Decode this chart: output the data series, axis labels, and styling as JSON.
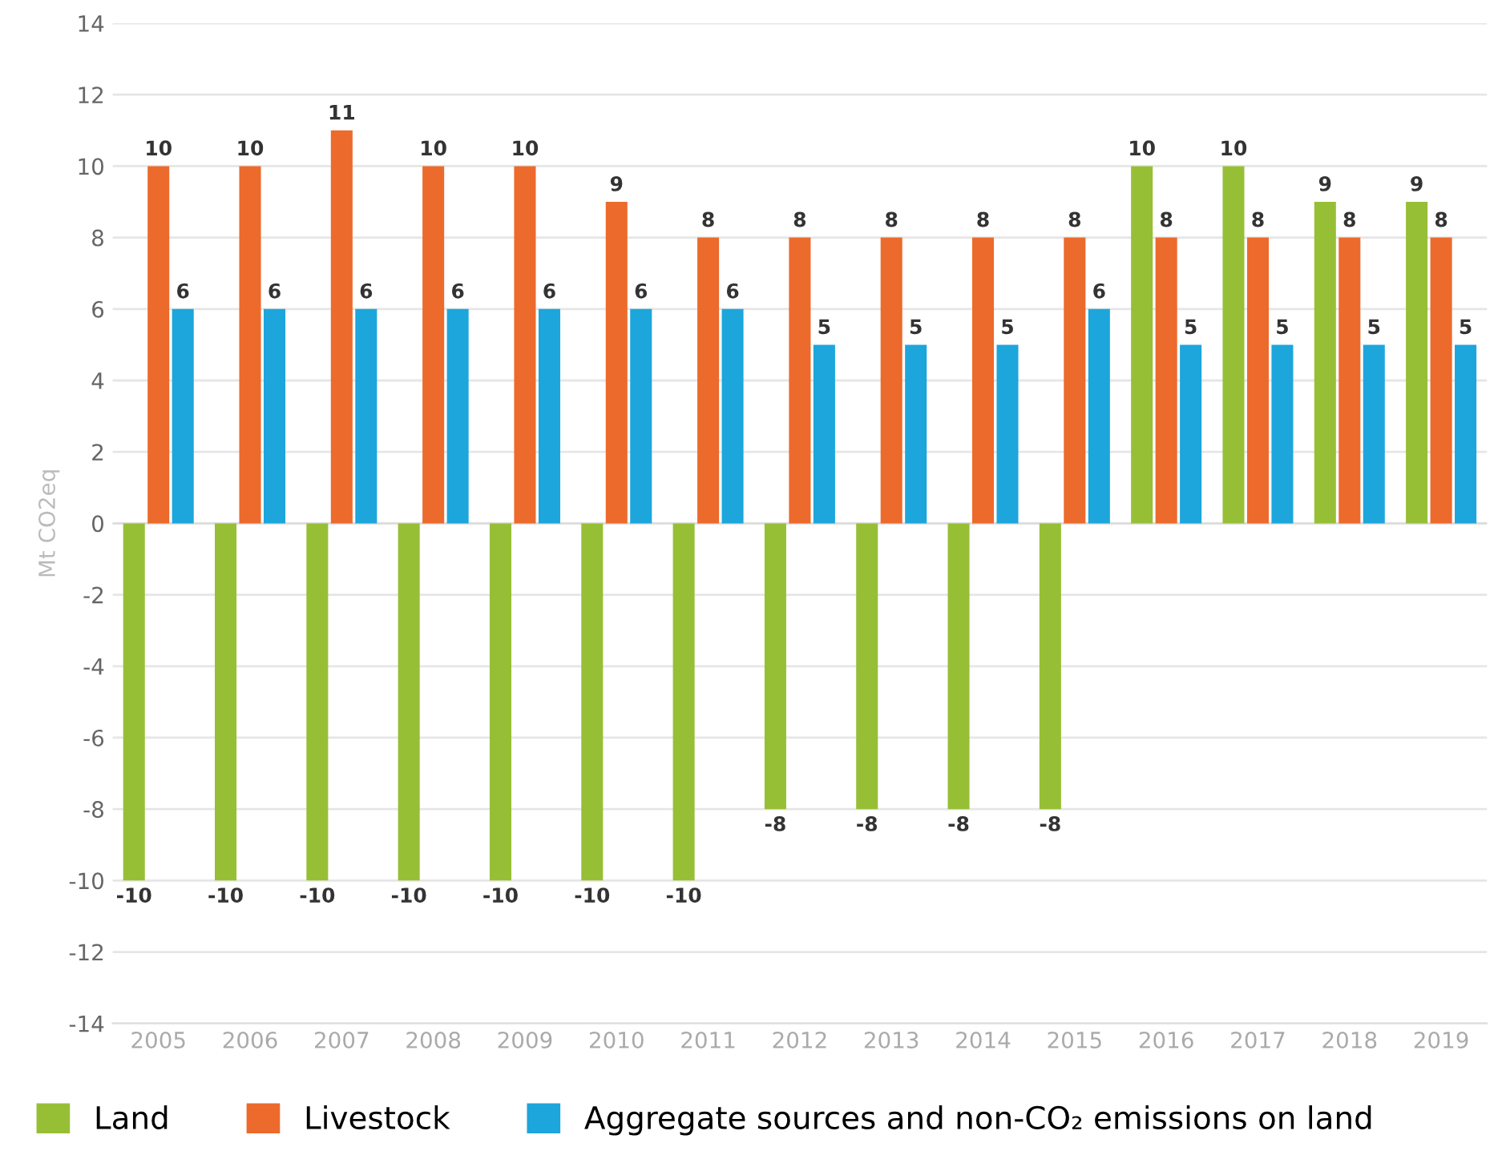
{
  "chart_data": {
    "type": "bar",
    "ylabel": "Mt CO2eq",
    "categories": [
      "2005",
      "2006",
      "2007",
      "2008",
      "2009",
      "2010",
      "2011",
      "2012",
      "2013",
      "2014",
      "2015",
      "2016",
      "2017",
      "2018",
      "2019"
    ],
    "series": [
      {
        "name": "Land",
        "color": "#97bf36",
        "values": [
          -10,
          -10,
          -10,
          -10,
          -10,
          -10,
          -10,
          -8,
          -8,
          -8,
          -8,
          10,
          10,
          9,
          9
        ]
      },
      {
        "name": "Livestock",
        "color": "#ec6a2c",
        "values": [
          10,
          10,
          11,
          10,
          10,
          9,
          8,
          8,
          8,
          8,
          8,
          8,
          8,
          8,
          8
        ]
      },
      {
        "name": "Aggregate sources and non-CO₂ emissions on land",
        "color": "#1ca6dc",
        "values": [
          6,
          6,
          6,
          6,
          6,
          6,
          6,
          5,
          5,
          5,
          6,
          5,
          5,
          5,
          5
        ]
      }
    ],
    "ylim": [
      -14,
      14
    ],
    "yticks": [
      -14,
      -12,
      -10,
      -8,
      -6,
      -4,
      -2,
      0,
      2,
      4,
      6,
      8,
      10,
      12,
      14
    ],
    "grid": "y",
    "legend": "bottom left",
    "data_labels": true
  }
}
